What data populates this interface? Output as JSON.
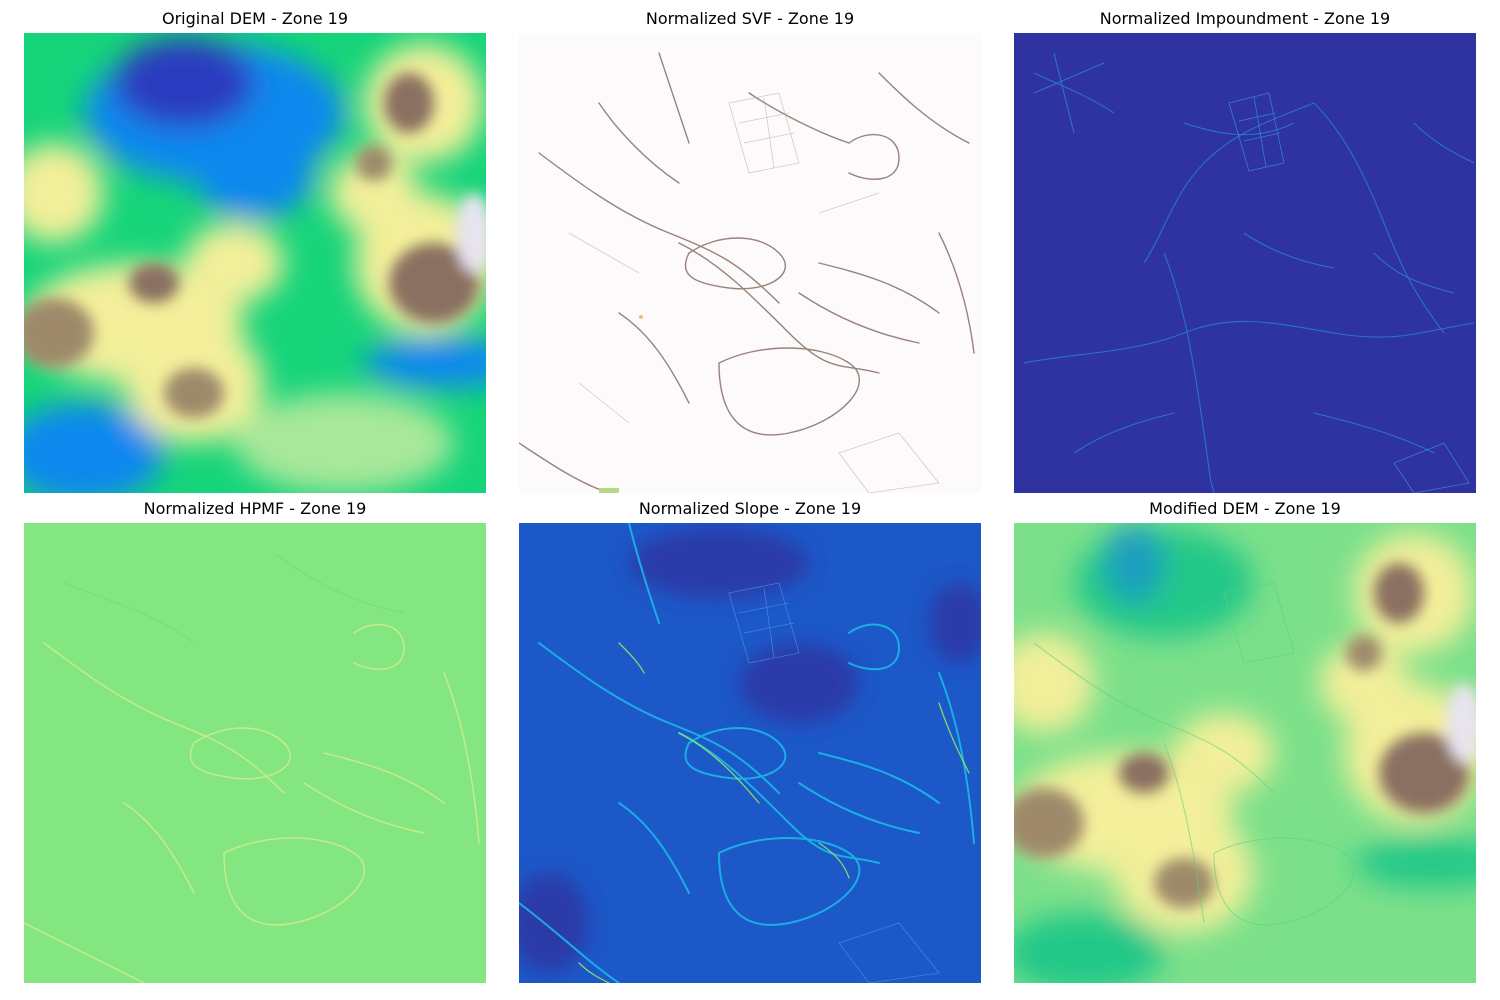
{
  "panels": [
    {
      "title": "Original DEM - Zone 19",
      "colormap": "terrain"
    },
    {
      "title": "Normalized SVF - Zone 19",
      "colormap": "pink-brown"
    },
    {
      "title": "Normalized Impoundment - Zone 19",
      "colormap": "dark-blue"
    },
    {
      "title": "Normalized HPMF - Zone 19",
      "colormap": "light-green"
    },
    {
      "title": "Normalized Slope - Zone 19",
      "colormap": "blue-cyan"
    },
    {
      "title": "Modified DEM - Zone 19",
      "colormap": "terrain"
    }
  ]
}
